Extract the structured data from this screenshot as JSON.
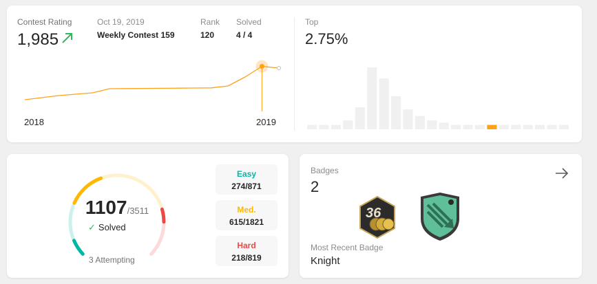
{
  "rating": {
    "label": "Contest Rating",
    "value": "1,985",
    "contest_date": "Oct 19, 2019",
    "contest_name": "Weekly Contest 159",
    "rank_label": "Rank",
    "rank_value": "120",
    "solved_label": "Solved",
    "solved_value": "4 / 4",
    "x_start": "2018",
    "x_end": "2019",
    "top_label": "Top",
    "top_value": "2.75%"
  },
  "chart_data": [
    {
      "type": "line",
      "title": "Contest Rating",
      "x": [
        "2018",
        "",
        "",
        "",
        "",
        "",
        "",
        "",
        "",
        "",
        "",
        "",
        "",
        "2019",
        "",
        ""
      ],
      "values": [
        1500,
        1530,
        1560,
        1580,
        1600,
        1660,
        1662,
        1664,
        1666,
        1668,
        1670,
        1672,
        1700,
        1830,
        1985,
        1960
      ],
      "highlighted_point": {
        "label": "Weekly Contest 159",
        "value": 1985
      },
      "xlabel": "",
      "ylabel": "",
      "color": "#ffa116"
    },
    {
      "type": "bar",
      "title": "Top 2.75%",
      "values": [
        4,
        4,
        4,
        8,
        20,
        56,
        46,
        30,
        18,
        12,
        8,
        6,
        4,
        4,
        4,
        4,
        4,
        4,
        4,
        4,
        4,
        4
      ],
      "highlighted_index": 15,
      "bar_color": "#f0f0f0",
      "highlight_color": "#ffa116"
    }
  ],
  "progress": {
    "solved": "1107",
    "total": "/3511",
    "solved_label": "Solved",
    "attempting": "3 Attempting",
    "easy": {
      "label": "Easy",
      "value": "274/871",
      "color": "#00b8a3"
    },
    "medium": {
      "label": "Med.",
      "value": "615/1821",
      "color": "#ffb800"
    },
    "hard": {
      "label": "Hard",
      "value": "218/819",
      "color": "#ef4743"
    },
    "fractions": {
      "easy": 0.3146,
      "medium": 0.3377,
      "hard": 0.2662
    }
  },
  "badges": {
    "label": "Badges",
    "count": "2",
    "recent_label": "Most Recent Badge",
    "recent_name": "Knight",
    "icons": [
      "contest-365-days-badge-icon",
      "knight-badge-icon"
    ]
  }
}
